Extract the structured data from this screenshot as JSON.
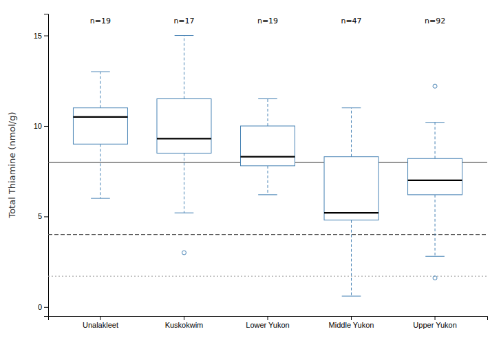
{
  "chart_data": {
    "type": "box",
    "categories": [
      "Unalakleet",
      "Kuskokwim",
      "Lower Yukon",
      "Middle Yukon",
      "Upper Yukon"
    ],
    "values": [
      {
        "median": 10.5,
        "q1": 9.0,
        "q3": 11.0,
        "whisker_low": 6.0,
        "whisker_high": 13.0,
        "fliers": []
      },
      {
        "median": 9.3,
        "q1": 8.5,
        "q3": 11.5,
        "whisker_low": 5.2,
        "whisker_high": 15.0,
        "fliers": [
          3.0
        ]
      },
      {
        "median": 8.3,
        "q1": 7.8,
        "q3": 10.0,
        "whisker_low": 6.2,
        "whisker_high": 11.5,
        "fliers": []
      },
      {
        "median": 5.2,
        "q1": 4.8,
        "q3": 8.3,
        "whisker_low": 0.6,
        "whisker_high": 11.0,
        "fliers": []
      },
      {
        "median": 7.0,
        "q1": 6.2,
        "q3": 8.2,
        "whisker_low": 2.8,
        "whisker_high": 10.2,
        "fliers": [
          12.2,
          1.6
        ]
      }
    ],
    "annotations": [
      "n=19",
      "n=17",
      "n=19",
      "n=47",
      "n=92"
    ],
    "reference_lines": [
      {
        "value": 8.0,
        "line_style": "solid"
      },
      {
        "value": 4.0,
        "line_style": "dashed"
      },
      {
        "value": 1.7,
        "line_style": "dotted"
      }
    ],
    "ylabel": "Total Thiamine (nmol/g)",
    "ylim": [
      -0.5,
      16.2
    ],
    "yticks": [
      0,
      5,
      10,
      15
    ],
    "grid": false
  }
}
